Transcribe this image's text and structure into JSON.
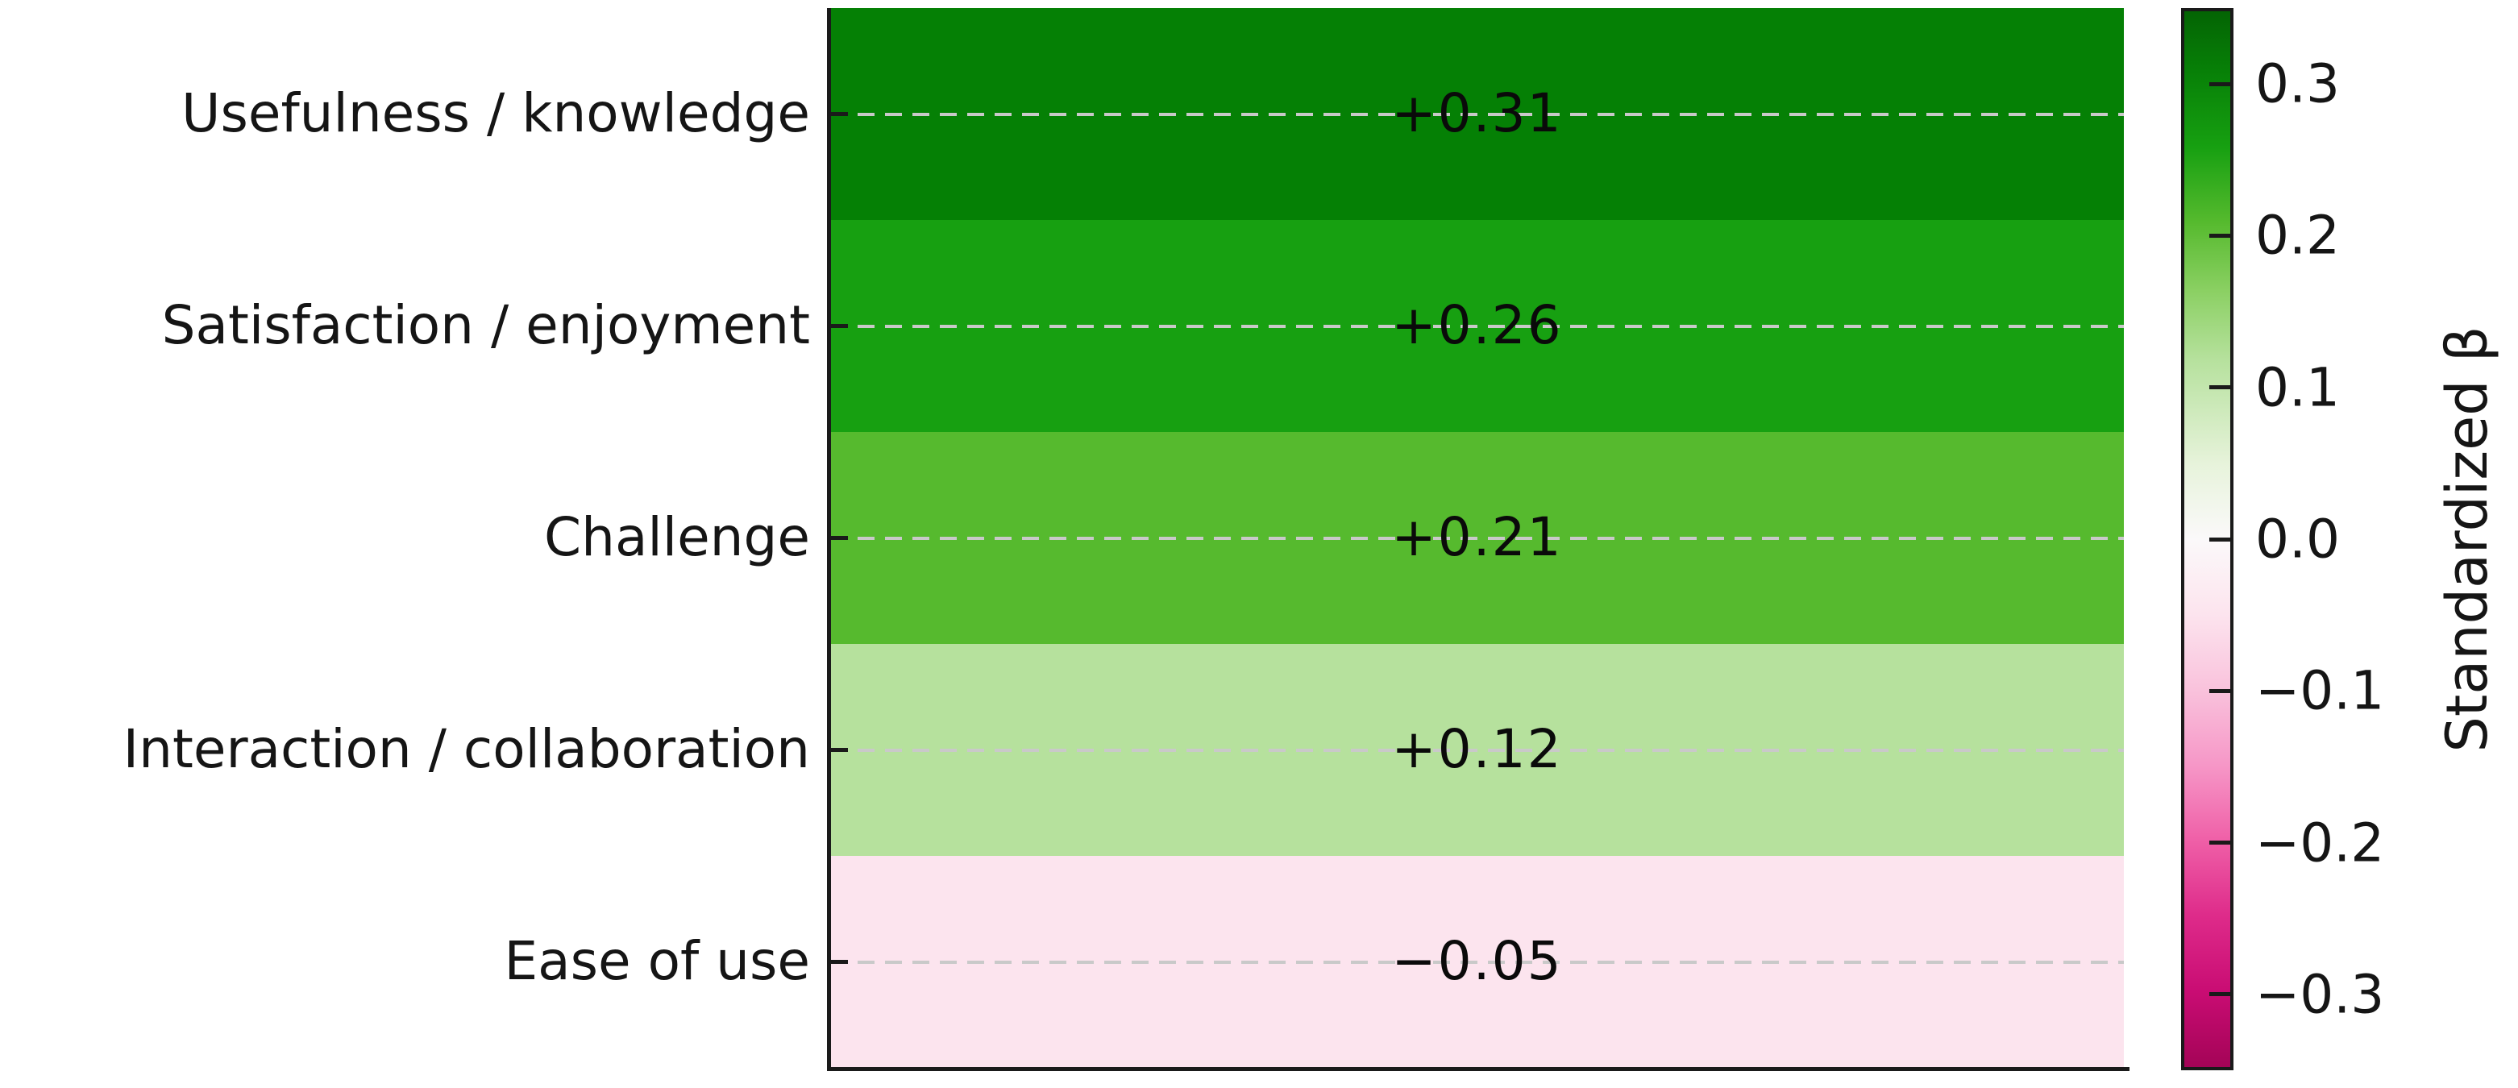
{
  "chart_data": {
    "type": "heatmap",
    "description": "Single-column heatmap of standardized regression coefficients for five predictors, with diverging pink-to-green colorbar",
    "categories": [
      "Usefulness / knowledge",
      "Satisfaction / enjoyment",
      "Challenge",
      "Interaction / collaboration",
      "Ease of use"
    ],
    "values": [
      0.31,
      0.26,
      0.21,
      0.12,
      -0.05
    ],
    "value_labels": [
      "+0.31",
      "+0.26",
      "+0.21",
      "+0.12",
      "−0.05"
    ],
    "cell_colors": [
      "#058005",
      "#17A011",
      "#56BA2E",
      "#B6E19D",
      "#FCE4EE"
    ],
    "grid": true,
    "gridline_color": "#c9c9c9",
    "spine_color": "#1a1a1a",
    "text_color": "#151515",
    "colorbar": {
      "label": "Standardized β",
      "vmin": -0.35,
      "vmax": 0.35,
      "ticks": [
        0.3,
        0.2,
        0.1,
        0.0,
        -0.1,
        -0.2,
        -0.3
      ],
      "tick_labels": [
        "0.3",
        "0.2",
        "0.1",
        "0.0",
        "−0.1",
        "−0.2",
        "−0.3"
      ],
      "gradient_stops": [
        {
          "pos": 0,
          "color": "#046404"
        },
        {
          "pos": 5.7,
          "color": "#078007"
        },
        {
          "pos": 12.9,
          "color": "#17A011"
        },
        {
          "pos": 20,
          "color": "#56BA2E"
        },
        {
          "pos": 26.5,
          "color": "#8BD063"
        },
        {
          "pos": 33,
          "color": "#B6E19D"
        },
        {
          "pos": 42.9,
          "color": "#E7F3DB"
        },
        {
          "pos": 50,
          "color": "#FBF9FA"
        },
        {
          "pos": 57.1,
          "color": "#FCE4EE"
        },
        {
          "pos": 64.3,
          "color": "#F9C2DC"
        },
        {
          "pos": 71.4,
          "color": "#F697C7"
        },
        {
          "pos": 78.6,
          "color": "#EF5FA7"
        },
        {
          "pos": 85.7,
          "color": "#DE2B8A"
        },
        {
          "pos": 92.9,
          "color": "#C90C73"
        },
        {
          "pos": 100,
          "color": "#A40457"
        }
      ]
    }
  }
}
